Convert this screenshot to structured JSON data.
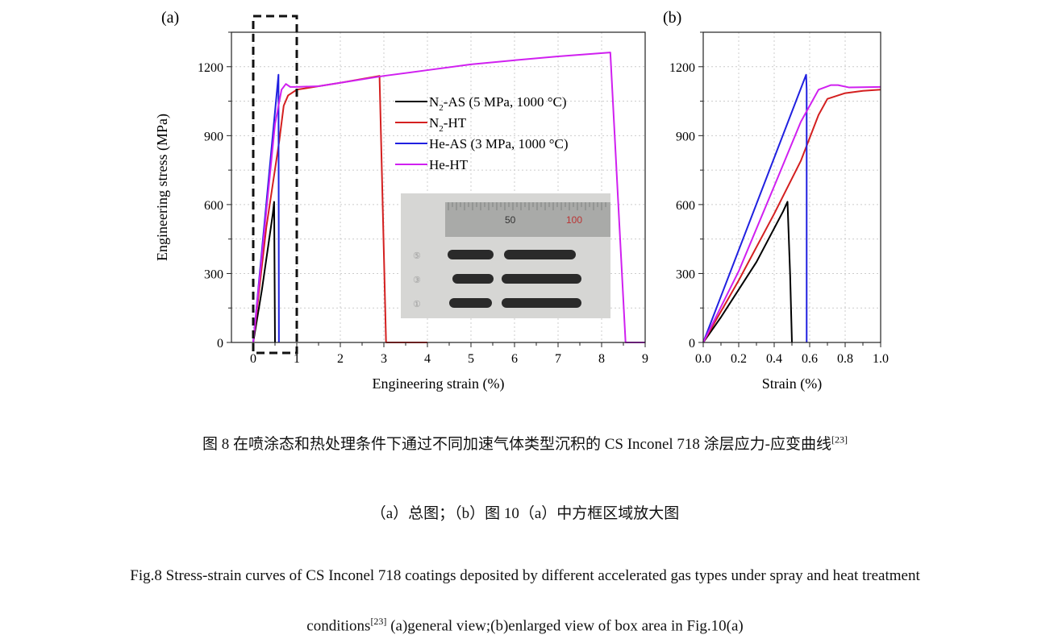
{
  "chart_data": [
    {
      "type": "line",
      "panel_label": "(a)",
      "xlabel": "Engineering strain (%)",
      "ylabel": "Engineering stress (MPa)",
      "xlim": [
        -0.5,
        9
      ],
      "ylim": [
        0,
        1350
      ],
      "xticks": [
        "0",
        "1",
        "2",
        "3",
        "4",
        "5",
        "6",
        "7",
        "8",
        "9"
      ],
      "yticks": [
        "0",
        "300",
        "600",
        "900",
        "1200"
      ],
      "grid": true,
      "legend_position": "upper-middle",
      "series": [
        {
          "name": "N2-AS (5 MPa, 1000 °C)",
          "label_main": "N",
          "label_sub": "2",
          "label_rest": "-AS (5 MPa, 1000 °C)",
          "color": "#000000",
          "x": [
            0,
            0.2,
            0.45,
            0.48,
            0.5
          ],
          "y": [
            0,
            230,
            560,
            612,
            0
          ]
        },
        {
          "name": "N2-HT",
          "label_main": "N",
          "label_sub": "2",
          "label_rest": "-HT",
          "color": "#d42020",
          "x": [
            0,
            0.3,
            0.6,
            0.7,
            0.8,
            1.0,
            1.5,
            2.0,
            2.9,
            3.05,
            4.0
          ],
          "y": [
            0,
            500,
            880,
            1030,
            1075,
            1100,
            1115,
            1130,
            1160,
            0,
            0
          ]
        },
        {
          "name": "He-AS (3 MPa, 1000 °C)",
          "label_main": "He-AS (3 MPa, 1000 °C)",
          "label_sub": "",
          "label_rest": "",
          "color": "#2020e0",
          "x": [
            0,
            0.58,
            0.59
          ],
          "y": [
            0,
            1165,
            0
          ]
        },
        {
          "name": "He-HT",
          "label_main": "He-HT",
          "label_sub": "",
          "label_rest": "",
          "color": "#d020f0",
          "x": [
            0,
            0.5,
            0.65,
            0.75,
            0.85,
            1.0,
            1.5,
            2.0,
            3.0,
            4.0,
            5.0,
            6.0,
            7.0,
            8.2,
            8.55,
            9.0
          ],
          "y": [
            0,
            950,
            1100,
            1125,
            1112,
            1112,
            1115,
            1130,
            1160,
            1185,
            1210,
            1228,
            1245,
            1262,
            0,
            0
          ]
        }
      ],
      "annotation_box": {
        "x": [
          0,
          1
        ],
        "y": [
          0,
          1200
        ]
      },
      "inset_photo": {
        "ruler_labels": [
          "50",
          "100"
        ],
        "specimen_marks": [
          "⑤",
          "③",
          "①"
        ]
      }
    },
    {
      "type": "line",
      "panel_label": "(b)",
      "xlabel": "Strain (%)",
      "ylabel": "",
      "xlim": [
        0,
        1.0
      ],
      "ylim": [
        0,
        1350
      ],
      "xticks": [
        "0.0",
        "0.2",
        "0.4",
        "0.6",
        "0.8",
        "1.0"
      ],
      "yticks": [
        "0",
        "300",
        "600",
        "900",
        "1200"
      ],
      "grid": true,
      "series": [
        {
          "name": "N2-AS",
          "color": "#000000",
          "x": [
            0,
            0.1,
            0.3,
            0.45,
            0.475,
            0.49,
            0.5
          ],
          "y": [
            0,
            110,
            350,
            570,
            612,
            290,
            0
          ]
        },
        {
          "name": "N2-HT",
          "color": "#d42020",
          "x": [
            0,
            0.2,
            0.4,
            0.55,
            0.62,
            0.65,
            0.7,
            0.8,
            0.9,
            1.0
          ],
          "y": [
            0,
            270,
            560,
            790,
            930,
            990,
            1060,
            1085,
            1095,
            1100
          ]
        },
        {
          "name": "He-AS",
          "color": "#2020e0",
          "x": [
            0,
            0.58,
            0.583,
            0.583
          ],
          "y": [
            0,
            1165,
            1100,
            0
          ]
        },
        {
          "name": "He-HT",
          "color": "#d020f0",
          "x": [
            0,
            0.2,
            0.4,
            0.55,
            0.65,
            0.72,
            0.76,
            0.82,
            1.0
          ],
          "y": [
            0,
            310,
            680,
            960,
            1100,
            1120,
            1120,
            1110,
            1112
          ]
        }
      ]
    }
  ],
  "captions": {
    "zh_title": "图 8 在喷涂态和热处理条件下通过不同加速气体类型沉积的 CS Inconel 718 涂层应力-应变曲线",
    "zh_ref": "[23]",
    "zh_sub": "（a）总图；（b）图 10（a）中方框区域放大图",
    "en_line1": "Fig.8 Stress-strain curves of CS Inconel 718 coatings deposited by different accelerated gas types under spray and heat treatment",
    "en_line2_a": "conditions",
    "en_ref": "[23]",
    "en_line2_b": " (a)general view;(b)enlarged view of box area in Fig.10(a)"
  }
}
